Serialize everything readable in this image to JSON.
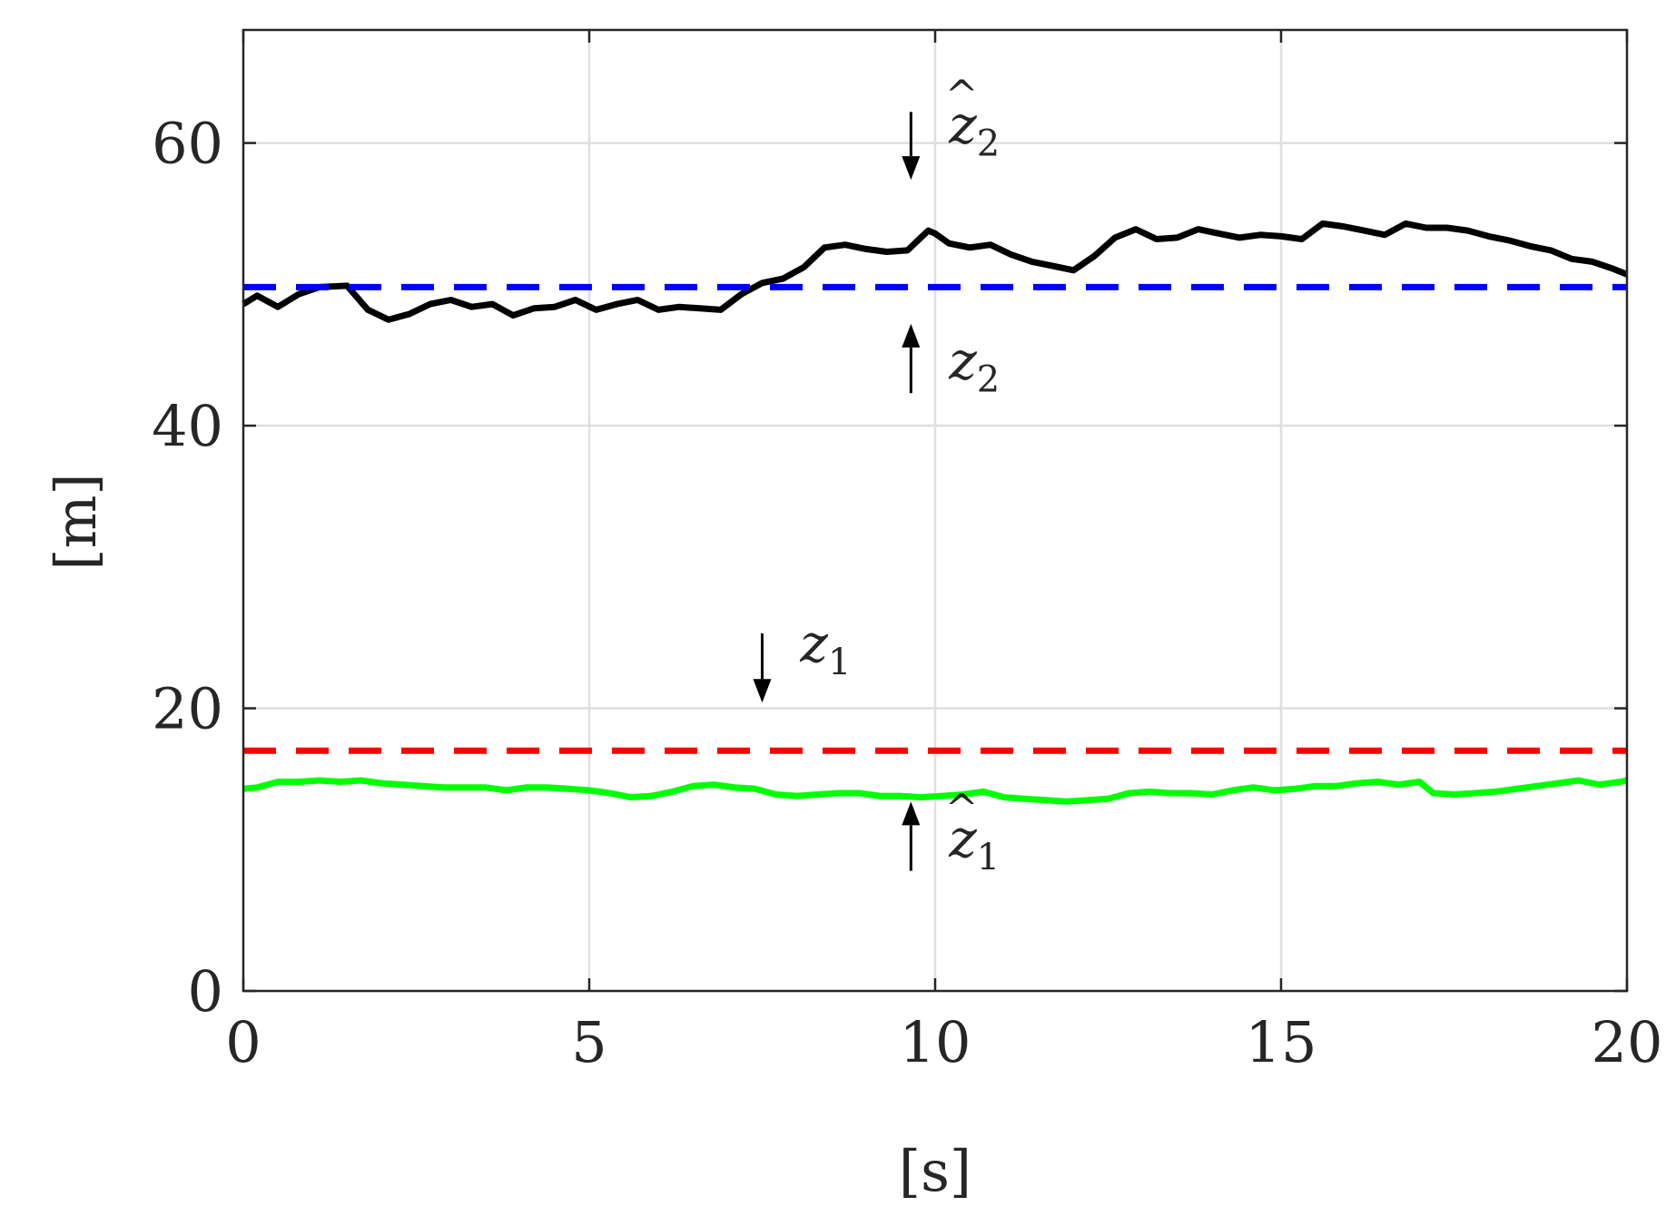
{
  "chart_data": {
    "type": "line",
    "title": "",
    "xlabel": "[s]",
    "ylabel": "[m]",
    "xlim": [
      0,
      20
    ],
    "ylim": [
      0,
      68
    ],
    "xticks": [
      0,
      5,
      10,
      15,
      20
    ],
    "yticks": [
      0,
      20,
      40,
      60
    ],
    "xtick_labels": [
      "0",
      "5",
      "10",
      "15",
      "20"
    ],
    "ytick_labels": [
      "0",
      "20",
      "40",
      "60"
    ],
    "grid": true,
    "legend": "none",
    "series": [
      {
        "color": "#000000",
        "style": "solid",
        "x": [
          0,
          0.2,
          0.5,
          0.8,
          1.1,
          1.5,
          1.8,
          2.1,
          2.4,
          2.7,
          3.0,
          3.3,
          3.6,
          3.9,
          4.2,
          4.5,
          4.8,
          5.1,
          5.4,
          5.7,
          6.0,
          6.3,
          6.6,
          6.9,
          7.2,
          7.5,
          7.8,
          8.1,
          8.4,
          8.7,
          9.0,
          9.3,
          9.6,
          9.9,
          10.0,
          10.2,
          10.5,
          10.8,
          11.1,
          11.4,
          11.7,
          12.0,
          12.3,
          12.6,
          12.9,
          13.2,
          13.5,
          13.8,
          14.1,
          14.4,
          14.7,
          15.0,
          15.3,
          15.6,
          15.9,
          16.2,
          16.5,
          16.8,
          17.1,
          17.4,
          17.7,
          18.0,
          18.3,
          18.6,
          18.9,
          19.2,
          19.5,
          19.8,
          20.0
        ],
        "y": [
          48.6,
          49.2,
          48.4,
          49.3,
          49.8,
          49.9,
          48.2,
          47.5,
          47.9,
          48.6,
          48.9,
          48.4,
          48.6,
          47.8,
          48.3,
          48.4,
          48.9,
          48.2,
          48.6,
          48.9,
          48.2,
          48.4,
          48.3,
          48.2,
          49.3,
          50.1,
          50.4,
          51.2,
          52.6,
          52.8,
          52.5,
          52.3,
          52.4,
          53.8,
          53.6,
          52.9,
          52.6,
          52.8,
          52.1,
          51.6,
          51.3,
          51.0,
          52.0,
          53.3,
          53.9,
          53.2,
          53.3,
          53.9,
          53.6,
          53.3,
          53.5,
          53.4,
          53.2,
          54.3,
          54.1,
          53.8,
          53.5,
          54.3,
          54.0,
          54.0,
          53.8,
          53.4,
          53.1,
          52.7,
          52.4,
          51.8,
          51.6,
          51.1,
          50.7
        ]
      },
      {
        "color": "#0000ff",
        "style": "dashed",
        "x": [
          0,
          20
        ],
        "y": [
          49.8,
          49.8
        ]
      },
      {
        "color": "#ff0000",
        "style": "dashed",
        "x": [
          0,
          20
        ],
        "y": [
          17.0,
          17.0
        ]
      },
      {
        "color": "#00ff00",
        "style": "solid",
        "x": [
          0,
          0.2,
          0.5,
          0.8,
          1.1,
          1.4,
          1.7,
          2.0,
          2.3,
          2.6,
          2.9,
          3.2,
          3.5,
          3.8,
          4.1,
          4.4,
          4.7,
          5.0,
          5.3,
          5.6,
          5.9,
          6.2,
          6.5,
          6.8,
          7.1,
          7.4,
          7.7,
          8.0,
          8.3,
          8.6,
          8.9,
          9.2,
          9.5,
          9.8,
          10.1,
          10.4,
          10.7,
          11.0,
          11.3,
          11.6,
          11.9,
          12.2,
          12.5,
          12.8,
          13.1,
          13.4,
          13.7,
          14.0,
          14.3,
          14.6,
          14.9,
          15.2,
          15.5,
          15.8,
          16.1,
          16.4,
          16.7,
          17.0,
          17.2,
          17.5,
          17.8,
          18.1,
          18.4,
          18.7,
          19.0,
          19.3,
          19.6,
          19.9,
          20.0
        ],
        "y": [
          14.3,
          14.4,
          14.8,
          14.8,
          14.9,
          14.8,
          14.9,
          14.7,
          14.6,
          14.5,
          14.4,
          14.4,
          14.4,
          14.2,
          14.4,
          14.4,
          14.3,
          14.2,
          14.0,
          13.7,
          13.8,
          14.1,
          14.5,
          14.6,
          14.4,
          14.3,
          13.9,
          13.8,
          13.9,
          14.0,
          14.0,
          13.8,
          13.8,
          13.7,
          13.8,
          13.9,
          14.1,
          13.7,
          13.6,
          13.5,
          13.4,
          13.5,
          13.6,
          14.0,
          14.1,
          14.0,
          14.0,
          13.9,
          14.2,
          14.4,
          14.2,
          14.3,
          14.5,
          14.5,
          14.7,
          14.8,
          14.6,
          14.8,
          14.0,
          13.9,
          14.0,
          14.1,
          14.3,
          14.5,
          14.7,
          14.9,
          14.6,
          14.8,
          14.9
        ]
      }
    ],
    "annotations": [
      {
        "base": "z",
        "hat": true,
        "sub": "2",
        "arrow": "down",
        "x": 9.65,
        "y_tip": 57.4,
        "y_tail": 62.2,
        "label_x": 10.2,
        "label_y": 60.0
      },
      {
        "base": "z",
        "hat": false,
        "sub": "2",
        "arrow": "up",
        "x": 9.65,
        "y_tip": 47.2,
        "y_tail": 42.3,
        "label_x": 10.2,
        "label_y": 43.3
      },
      {
        "base": "z",
        "hat": false,
        "sub": "1",
        "arrow": "down",
        "x": 7.5,
        "y_tip": 20.4,
        "y_tail": 25.3,
        "label_x": 8.05,
        "label_y": 23.3
      },
      {
        "base": "z",
        "hat": true,
        "sub": "1",
        "arrow": "up",
        "x": 9.65,
        "y_tip": 13.4,
        "y_tail": 8.5,
        "label_x": 10.2,
        "label_y": 9.5
      }
    ]
  }
}
